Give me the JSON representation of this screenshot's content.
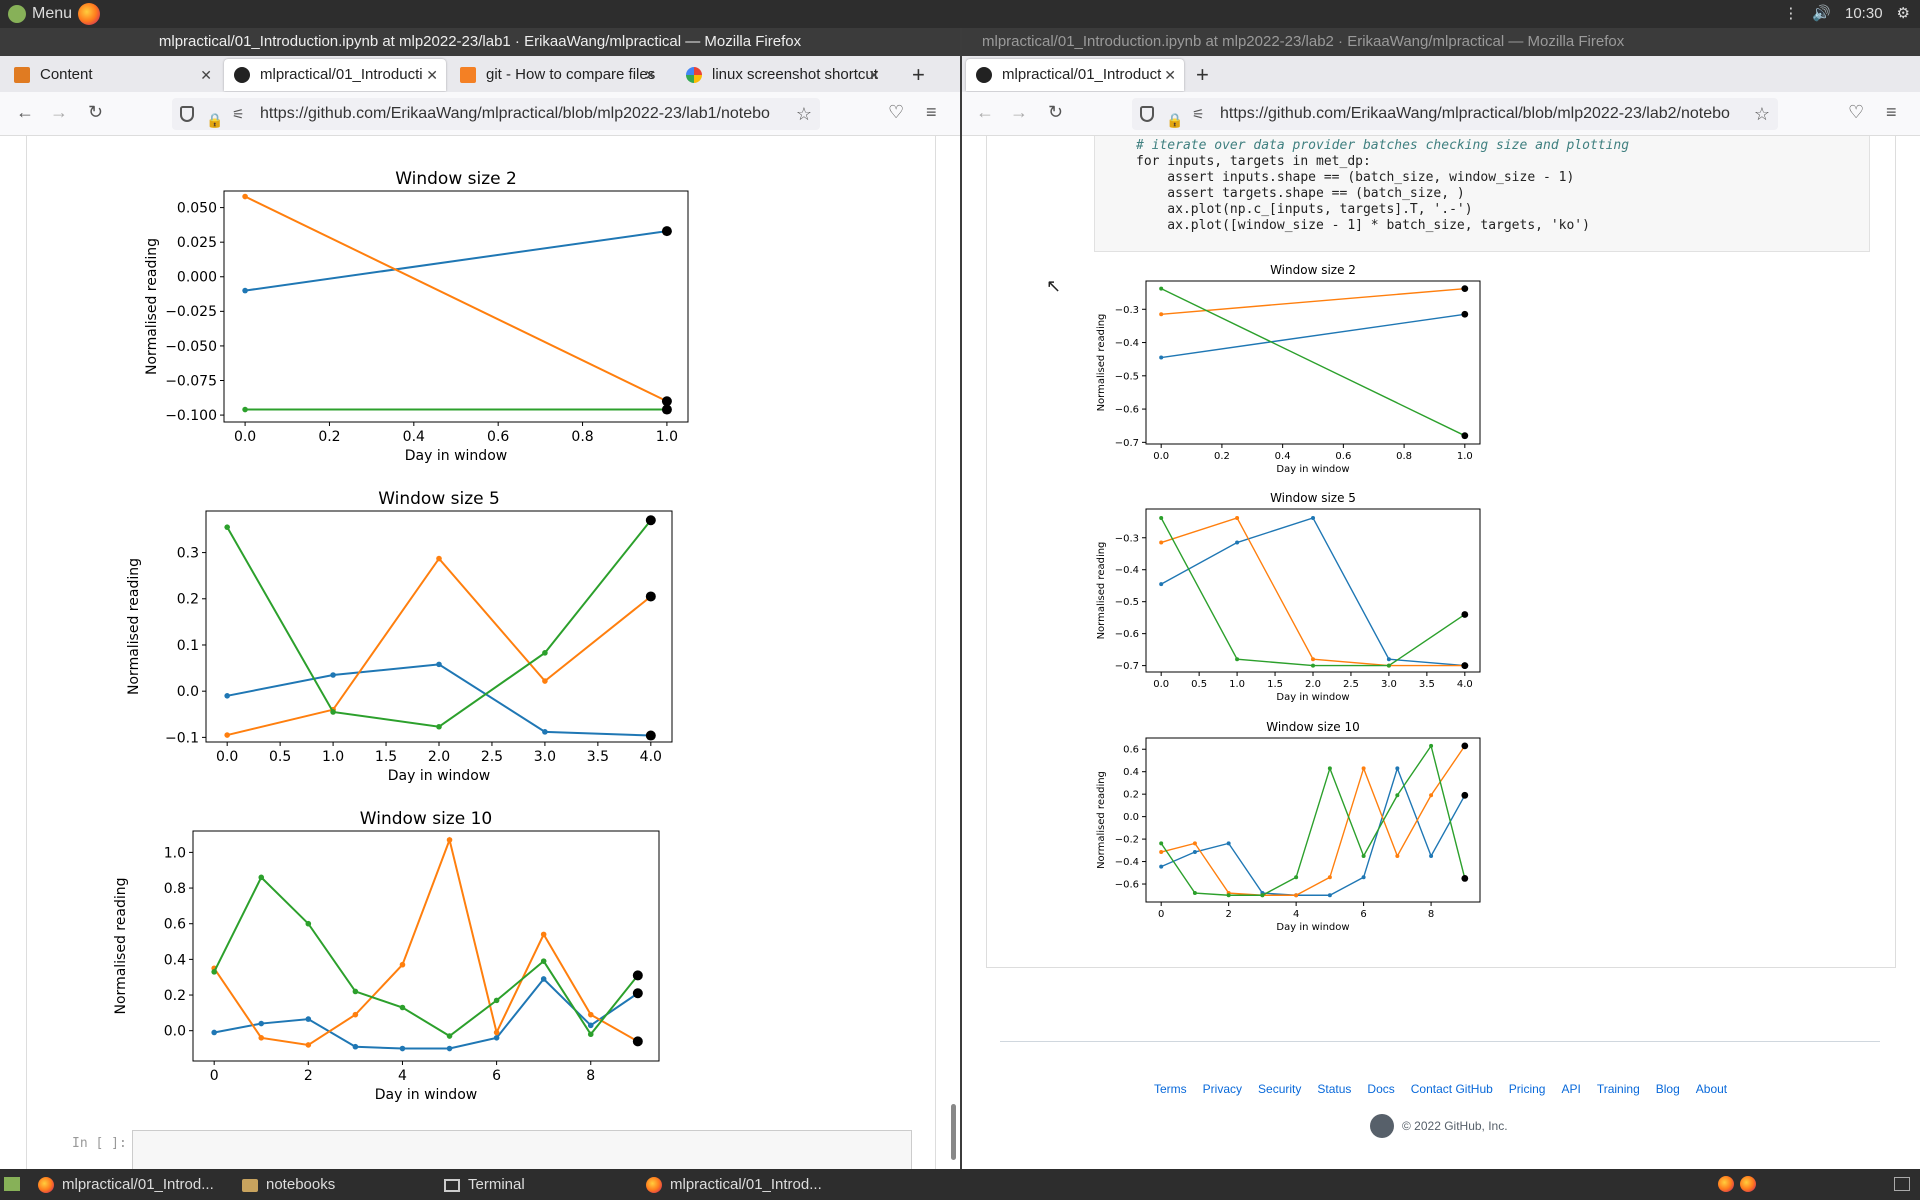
{
  "desktop": {
    "menu_label": "Menu",
    "clock": "10:30"
  },
  "left_window": {
    "title": "mlpractical/01_Introduction.ipynb at mlp2022-23/lab1 · ErikaaWang/mlpractical — Mozilla Firefox",
    "tabs": [
      {
        "label": "Content"
      },
      {
        "label": "mlpractical/01_Introducti"
      },
      {
        "label": "git - How to compare files"
      },
      {
        "label": "linux screenshot shortcut"
      }
    ],
    "url": "https://github.com/ErikaaWang/mlpractical/blob/mlp2022-23/lab1/notebo",
    "empty_cell_prompt": "In [ ]:"
  },
  "right_window": {
    "title": "mlpractical/01_Introduction.ipynb at mlp2022-23/lab2 · ErikaaWang/mlpractical — Mozilla Firefox",
    "tabs": [
      {
        "label": "mlpractical/01_Introduct"
      }
    ],
    "url": "https://github.com/ErikaaWang/mlpractical/blob/mlp2022-23/lab2/notebo",
    "footer_links": [
      "Terms",
      "Privacy",
      "Security",
      "Status",
      "Docs",
      "Contact GitHub",
      "Pricing",
      "API",
      "Training",
      "Blog",
      "About"
    ],
    "copyright": "© 2022 GitHub, Inc."
  },
  "taskbar": {
    "items": [
      "mlpractical/01_Introd...",
      "notebooks",
      "Terminal",
      "mlpractical/01_Introd..."
    ]
  },
  "chart_data": [
    {
      "type": "line",
      "title": "Window size 2",
      "xlabel": "Day in window",
      "ylabel": "Normalised reading",
      "xticks": [
        0.0,
        0.2,
        0.4,
        0.6,
        0.8,
        1.0
      ],
      "xtick_labels": [
        "0.0",
        "0.2",
        "0.4",
        "0.6",
        "0.8",
        "1.0"
      ],
      "yticks": [
        0.05,
        0.025,
        0.0,
        -0.025,
        -0.05,
        -0.075,
        -0.1
      ],
      "ytick_labels": [
        "0.050",
        "0.025",
        "0.000",
        "−0.025",
        "−0.050",
        "−0.075",
        "−0.100"
      ],
      "xlim": [
        -0.05,
        1.05
      ],
      "ylim": [
        -0.105,
        0.062
      ],
      "series": [
        {
          "color": "#1f77b4",
          "x": [
            0
          ],
          "y": [
            -0.01
          ]
        },
        {
          "color": "#ff7f0e",
          "x": [
            0
          ],
          "y": [
            0.058
          ]
        },
        {
          "color": "#2ca02c",
          "x": [
            0
          ],
          "y": [
            -0.096
          ]
        }
      ],
      "targets": [
        {
          "color": "#1f77b4",
          "x": 1,
          "y": 0.033
        },
        {
          "color": "#ff7f0e",
          "x": 1,
          "y": -0.09
        },
        {
          "color": "#2ca02c",
          "x": 1,
          "y": -0.096
        }
      ],
      "connect_targets": true
    },
    {
      "type": "line",
      "title": "Window size 5",
      "xlabel": "Day in window",
      "ylabel": "Normalised reading",
      "xticks": [
        0,
        0.5,
        1,
        1.5,
        2,
        2.5,
        3,
        3.5,
        4
      ],
      "xtick_labels": [
        "0.0",
        "0.5",
        "1.0",
        "1.5",
        "2.0",
        "2.5",
        "3.0",
        "3.5",
        "4.0"
      ],
      "yticks": [
        0.3,
        0.2,
        0.1,
        0.0,
        -0.1
      ],
      "ytick_labels": [
        "0.3",
        "0.2",
        "0.1",
        "0.0",
        "−0.1"
      ],
      "xlim": [
        -0.2,
        4.2
      ],
      "ylim": [
        -0.11,
        0.39
      ],
      "series": [
        {
          "color": "#1f77b4",
          "x": [
            0,
            1,
            2,
            3
          ],
          "y": [
            -0.01,
            0.035,
            0.058,
            -0.088
          ]
        },
        {
          "color": "#ff7f0e",
          "x": [
            0,
            1,
            2,
            3
          ],
          "y": [
            -0.095,
            -0.04,
            0.287,
            0.022
          ]
        },
        {
          "color": "#2ca02c",
          "x": [
            0,
            1,
            2,
            3
          ],
          "y": [
            0.355,
            -0.045,
            -0.077,
            0.083
          ]
        }
      ],
      "targets": [
        {
          "color": "#1f77b4",
          "x": 4,
          "y": -0.096
        },
        {
          "color": "#ff7f0e",
          "x": 4,
          "y": 0.205
        },
        {
          "color": "#2ca02c",
          "x": 4,
          "y": 0.37
        }
      ],
      "connect_targets": true
    },
    {
      "type": "line",
      "title": "Window size 10",
      "xlabel": "Day in window",
      "ylabel": "Normalised reading",
      "xticks": [
        0,
        2,
        4,
        6,
        8
      ],
      "xtick_labels": [
        "0",
        "2",
        "4",
        "6",
        "8"
      ],
      "yticks": [
        1.0,
        0.8,
        0.6,
        0.4,
        0.2,
        0.0
      ],
      "ytick_labels": [
        "1.0",
        "0.8",
        "0.6",
        "0.4",
        "0.2",
        "0.0"
      ],
      "xlim": [
        -0.45,
        9.45
      ],
      "ylim": [
        -0.17,
        1.12
      ],
      "series": [
        {
          "color": "#1f77b4",
          "x": [
            0,
            1,
            2,
            3,
            4,
            5,
            6,
            7,
            8
          ],
          "y": [
            -0.01,
            0.04,
            0.065,
            -0.09,
            -0.1,
            -0.1,
            -0.04,
            0.29,
            0.03
          ]
        },
        {
          "color": "#ff7f0e",
          "x": [
            0,
            1,
            2,
            3,
            4,
            5,
            6,
            7,
            8
          ],
          "y": [
            0.35,
            -0.04,
            -0.08,
            0.09,
            0.37,
            1.07,
            -0.01,
            0.54,
            0.09
          ]
        },
        {
          "color": "#2ca02c",
          "x": [
            0,
            1,
            2,
            3,
            4,
            5,
            6,
            7,
            8
          ],
          "y": [
            0.33,
            0.86,
            0.6,
            0.22,
            0.13,
            -0.03,
            0.17,
            0.39,
            -0.02
          ]
        }
      ],
      "targets": [
        {
          "color": "#1f77b4",
          "x": 9,
          "y": 0.21
        },
        {
          "color": "#ff7f0e",
          "x": 9,
          "y": -0.06
        },
        {
          "color": "#2ca02c",
          "x": 9,
          "y": 0.31
        }
      ],
      "connect_targets": true
    },
    {
      "type": "line",
      "title": "Window size 2",
      "xlabel": "Day in window",
      "ylabel": "Normalised reading",
      "xticks": [
        0.0,
        0.2,
        0.4,
        0.6,
        0.8,
        1.0
      ],
      "xtick_labels": [
        "0.0",
        "0.2",
        "0.4",
        "0.6",
        "0.8",
        "1.0"
      ],
      "yticks": [
        -0.3,
        -0.4,
        -0.5,
        -0.6,
        -0.7
      ],
      "ytick_labels": [
        "−0.3",
        "−0.4",
        "−0.5",
        "−0.6",
        "−0.7"
      ],
      "xlim": [
        -0.05,
        1.05
      ],
      "ylim": [
        -0.705,
        -0.215
      ],
      "series": [
        {
          "color": "#1f77b4",
          "x": [
            0
          ],
          "y": [
            -0.445
          ]
        },
        {
          "color": "#ff7f0e",
          "x": [
            0
          ],
          "y": [
            -0.315
          ]
        },
        {
          "color": "#2ca02c",
          "x": [
            0
          ],
          "y": [
            -0.238
          ]
        }
      ],
      "targets": [
        {
          "color": "#1f77b4",
          "x": 1,
          "y": -0.315
        },
        {
          "color": "#ff7f0e",
          "x": 1,
          "y": -0.238
        },
        {
          "color": "#2ca02c",
          "x": 1,
          "y": -0.68
        }
      ],
      "connect_targets": true
    },
    {
      "type": "line",
      "title": "Window size 5",
      "xlabel": "Day in window",
      "ylabel": "Normalised reading",
      "xticks": [
        0,
        0.5,
        1,
        1.5,
        2,
        2.5,
        3,
        3.5,
        4
      ],
      "xtick_labels": [
        "0.0",
        "0.5",
        "1.0",
        "1.5",
        "2.0",
        "2.5",
        "3.0",
        "3.5",
        "4.0"
      ],
      "yticks": [
        -0.3,
        -0.4,
        -0.5,
        -0.6,
        -0.7
      ],
      "ytick_labels": [
        "−0.3",
        "−0.4",
        "−0.5",
        "−0.6",
        "−0.7"
      ],
      "xlim": [
        -0.2,
        4.2
      ],
      "ylim": [
        -0.72,
        -0.21
      ],
      "series": [
        {
          "color": "#1f77b4",
          "x": [
            0,
            1,
            2,
            3
          ],
          "y": [
            -0.445,
            -0.315,
            -0.238,
            -0.68
          ]
        },
        {
          "color": "#ff7f0e",
          "x": [
            0,
            1,
            2,
            3
          ],
          "y": [
            -0.315,
            -0.238,
            -0.68,
            -0.7
          ]
        },
        {
          "color": "#2ca02c",
          "x": [
            0,
            1,
            2,
            3
          ],
          "y": [
            -0.238,
            -0.68,
            -0.7,
            -0.7
          ]
        }
      ],
      "targets": [
        {
          "color": "#1f77b4",
          "x": 4,
          "y": -0.7
        },
        {
          "color": "#ff7f0e",
          "x": 4,
          "y": -0.7
        },
        {
          "color": "#2ca02c",
          "x": 4,
          "y": -0.54
        }
      ],
      "connect_targets": true
    },
    {
      "type": "line",
      "title": "Window size 10",
      "xlabel": "Day in window",
      "ylabel": "Normalised reading",
      "xticks": [
        0,
        2,
        4,
        6,
        8
      ],
      "xtick_labels": [
        "0",
        "2",
        "4",
        "6",
        "8"
      ],
      "yticks": [
        0.6,
        0.4,
        0.2,
        0.0,
        -0.2,
        -0.4,
        -0.6
      ],
      "ytick_labels": [
        "0.6",
        "0.4",
        "0.2",
        "0.0",
        "−0.2",
        "−0.4",
        "−0.6"
      ],
      "xlim": [
        -0.45,
        9.45
      ],
      "ylim": [
        -0.76,
        0.7
      ],
      "series": [
        {
          "color": "#1f77b4",
          "x": [
            0,
            1,
            2,
            3,
            4,
            5,
            6,
            7,
            8
          ],
          "y": [
            -0.445,
            -0.315,
            -0.238,
            -0.68,
            -0.7,
            -0.7,
            -0.54,
            0.43,
            -0.35
          ]
        },
        {
          "color": "#ff7f0e",
          "x": [
            0,
            1,
            2,
            3,
            4,
            5,
            6,
            7,
            8
          ],
          "y": [
            -0.315,
            -0.238,
            -0.68,
            -0.7,
            -0.7,
            -0.54,
            0.43,
            -0.35,
            0.19
          ]
        },
        {
          "color": "#2ca02c",
          "x": [
            0,
            1,
            2,
            3,
            4,
            5,
            6,
            7,
            8
          ],
          "y": [
            -0.238,
            -0.68,
            -0.7,
            -0.7,
            -0.54,
            0.43,
            -0.35,
            0.19,
            0.63
          ]
        }
      ],
      "targets": [
        {
          "color": "#1f77b4",
          "x": 9,
          "y": 0.19
        },
        {
          "color": "#ff7f0e",
          "x": 9,
          "y": 0.63
        },
        {
          "color": "#2ca02c",
          "x": 9,
          "y": -0.55
        }
      ],
      "connect_targets": true
    }
  ],
  "code_cell": {
    "lines": [
      "# iterate over data provider batches checking size and plotting",
      "for inputs, targets in met_dp:",
      "    assert inputs.shape == (batch_size, window_size - 1)",
      "    assert targets.shape == (batch_size, )",
      "    ax.plot(np.c_[inputs, targets].T, '.-')",
      "    ax.plot([window_size - 1] * batch_size, targets, 'ko')"
    ]
  }
}
